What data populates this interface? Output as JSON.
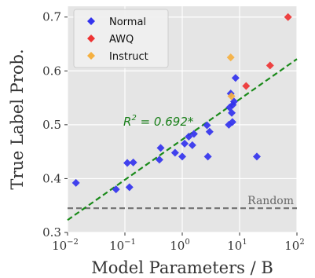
{
  "chart_data": {
    "type": "scatter",
    "xlabel": "Model Parameters / B",
    "ylabel": "True Label Prob.",
    "xscale": "log",
    "xlim": [
      0.01,
      100
    ],
    "ylim": [
      0.3,
      0.72
    ],
    "x_ticks": [
      {
        "value": 0.01,
        "base": "10",
        "exp": "−2"
      },
      {
        "value": 0.1,
        "base": "10",
        "exp": "−1"
      },
      {
        "value": 1,
        "base": "10",
        "exp": "0"
      },
      {
        "value": 10,
        "base": "10",
        "exp": "1"
      },
      {
        "value": 100,
        "base": "10",
        "exp": "2"
      }
    ],
    "y_ticks": [
      {
        "value": 0.3,
        "label": "0.3"
      },
      {
        "value": 0.4,
        "label": "0.4"
      },
      {
        "value": 0.5,
        "label": "0.5"
      },
      {
        "value": 0.6,
        "label": "0.6"
      },
      {
        "value": 0.7,
        "label": "0.7"
      }
    ],
    "grid": true,
    "legend_position": "top-left",
    "series": [
      {
        "name": "Normal",
        "color": "#3333ee",
        "marker": "diamond",
        "points": [
          {
            "x": 0.014,
            "y": 0.392
          },
          {
            "x": 0.07,
            "y": 0.38
          },
          {
            "x": 0.11,
            "y": 0.429
          },
          {
            "x": 0.12,
            "y": 0.384
          },
          {
            "x": 0.14,
            "y": 0.43
          },
          {
            "x": 0.4,
            "y": 0.435
          },
          {
            "x": 0.42,
            "y": 0.457
          },
          {
            "x": 0.75,
            "y": 0.448
          },
          {
            "x": 1.0,
            "y": 0.441
          },
          {
            "x": 1.1,
            "y": 0.465
          },
          {
            "x": 1.3,
            "y": 0.478
          },
          {
            "x": 1.5,
            "y": 0.462
          },
          {
            "x": 1.6,
            "y": 0.483
          },
          {
            "x": 2.7,
            "y": 0.499
          },
          {
            "x": 2.8,
            "y": 0.441
          },
          {
            "x": 3.0,
            "y": 0.487
          },
          {
            "x": 6.5,
            "y": 0.5
          },
          {
            "x": 6.7,
            "y": 0.532
          },
          {
            "x": 7.0,
            "y": 0.558
          },
          {
            "x": 7.3,
            "y": 0.522
          },
          {
            "x": 7.5,
            "y": 0.505
          },
          {
            "x": 7.6,
            "y": 0.537
          },
          {
            "x": 8.0,
            "y": 0.543
          },
          {
            "x": 8.5,
            "y": 0.587
          },
          {
            "x": 20,
            "y": 0.441
          }
        ]
      },
      {
        "name": "AWQ",
        "color": "#ee3333",
        "marker": "diamond",
        "points": [
          {
            "x": 13,
            "y": 0.572
          },
          {
            "x": 34,
            "y": 0.61
          },
          {
            "x": 70,
            "y": 0.7
          }
        ]
      },
      {
        "name": "Instruct",
        "color": "#f5b040",
        "marker": "diamond",
        "points": [
          {
            "x": 7.0,
            "y": 0.625
          },
          {
            "x": 7.2,
            "y": 0.553
          }
        ]
      }
    ],
    "trendline": {
      "color": "#1a8a1a",
      "style": "dashed",
      "x_start": 0.01,
      "x_end": 100,
      "y_start": 0.323,
      "y_end": 0.622,
      "label_prefix": "R",
      "label_power": "2",
      "label_value": " = 0.692*"
    },
    "baseline": {
      "y": 0.345,
      "color": "#777777",
      "style": "dashed",
      "label": "Random"
    }
  }
}
